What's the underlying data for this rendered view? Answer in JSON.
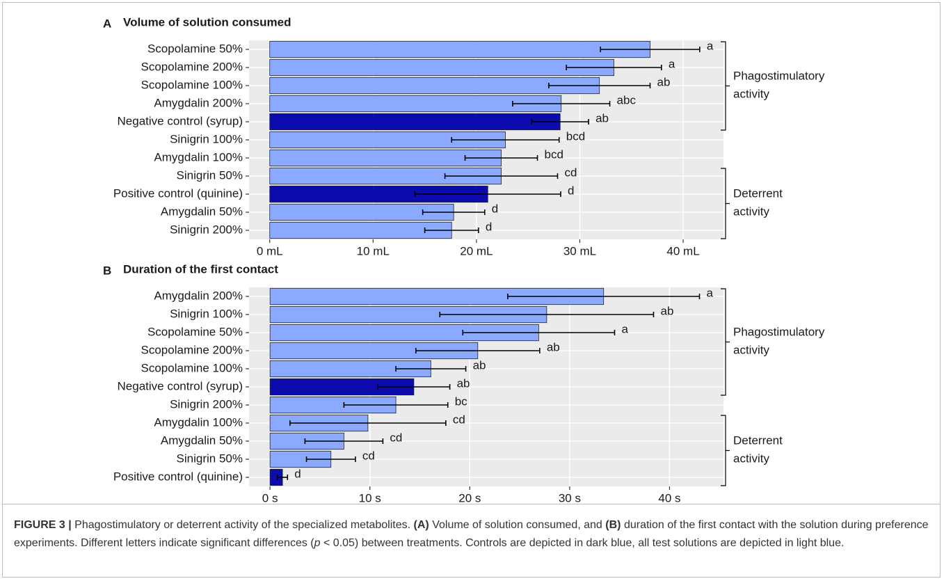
{
  "chart_data": [
    {
      "type": "bar",
      "orientation": "horizontal",
      "panel_label": "A",
      "title": "Volume of solution consumed",
      "categories": [
        "Scopolamine 50%",
        "Scopolamine 200%",
        "Scopolamine 100%",
        "Amygdalin 200%",
        "Negative control (syrup)",
        "Sinigrin 100%",
        "Amygdalin 100%",
        "Sinigrin 50%",
        "Positive control (quinine)",
        "Amygdalin 50%",
        "Sinigrin 200%"
      ],
      "values": [
        36.8,
        33.3,
        31.9,
        28.2,
        28.1,
        22.8,
        22.4,
        22.4,
        21.1,
        17.8,
        17.6
      ],
      "errors": [
        4.8,
        4.6,
        4.9,
        4.7,
        2.75,
        5.2,
        3.5,
        5.45,
        7.05,
        3.0,
        2.6
      ],
      "letters": [
        "a",
        "a",
        "ab",
        "abc",
        "ab",
        "bcd",
        "bcd",
        "cd",
        "d",
        "d",
        "d"
      ],
      "colors": [
        "#8aa9ff",
        "#8aa9ff",
        "#8aa9ff",
        "#8aa9ff",
        "#0c0cae",
        "#8aa9ff",
        "#8aa9ff",
        "#8aa9ff",
        "#0c0cae",
        "#8aa9ff",
        "#8aa9ff"
      ],
      "groups": [
        "Phagostimulatory activity",
        "Deterrent activity"
      ],
      "xlim": [
        -2.0,
        43.9
      ],
      "xticks": [
        {
          "value": 0,
          "label": "0 mL"
        },
        {
          "value": 10,
          "label": "10 mL"
        },
        {
          "value": 20,
          "label": "20 mL"
        },
        {
          "value": 30,
          "label": "30 mL"
        },
        {
          "value": 40,
          "label": "40 mL"
        }
      ],
      "grid": true
    },
    {
      "type": "bar",
      "orientation": "horizontal",
      "panel_label": "B",
      "title": "Duration of the first contact",
      "categories": [
        "Amygdalin 200%",
        "Sinigrin 100%",
        "Scopolamine 50%",
        "Scopolamine 200%",
        "Scopolamine 100%",
        "Negative control (syrup)",
        "Sinigrin 200%",
        "Amygdalin 100%",
        "Amygdalin 50%",
        "Sinigrin 50%",
        "Positive control (quinine)"
      ],
      "values": [
        33.4,
        27.7,
        26.9,
        20.8,
        16.1,
        14.4,
        12.6,
        9.8,
        7.4,
        6.1,
        1.25
      ],
      "errors": [
        9.6,
        10.7,
        7.6,
        6.2,
        3.5,
        3.6,
        5.2,
        7.8,
        3.9,
        2.45,
        0.5
      ],
      "letters": [
        "a",
        "ab",
        "a",
        "ab",
        "ab",
        "ab",
        "bc",
        "cd",
        "cd",
        "cd",
        "d"
      ],
      "colors": [
        "#8aa9ff",
        "#8aa9ff",
        "#8aa9ff",
        "#8aa9ff",
        "#8aa9ff",
        "#0c0cae",
        "#8aa9ff",
        "#8aa9ff",
        "#8aa9ff",
        "#8aa9ff",
        "#0c0cae"
      ],
      "groups": [
        "Phagostimulatory activity",
        "Deterrent activity"
      ],
      "xlim": [
        -2.1,
        45.4
      ],
      "xticks": [
        {
          "value": 0,
          "label": "0 s"
        },
        {
          "value": 10,
          "label": "10 s"
        },
        {
          "value": 20,
          "label": "20 s"
        },
        {
          "value": 30,
          "label": "30 s"
        },
        {
          "value": 40,
          "label": "40 s"
        }
      ],
      "grid": true
    }
  ],
  "caption": [
    "FIGURE 3 |",
    "Phagostimulatory or deterrent activity of the specialized metabolites.",
    "(A)",
    "Volume of solution consumed, and",
    "(B)",
    "duration of the first contact with the solution during preference experiments. Different letters indicate significant differences (",
    "p",
    "< 0.05) between treatments. Controls are depicted in dark blue, all test solutions are depicted in light blue."
  ]
}
